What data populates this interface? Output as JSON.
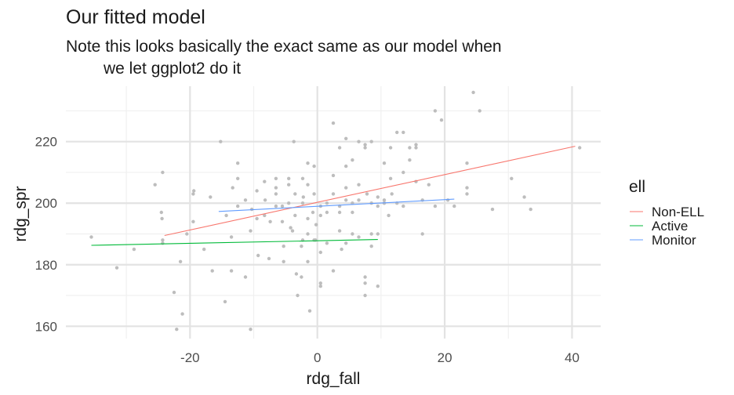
{
  "chart_data": {
    "type": "scatter",
    "title": "Our fitted model",
    "subtitle_lines": [
      "Note this looks basically the exact same as our model when",
      "we let ggplot2 do it"
    ],
    "xlabel": "rdg_fall",
    "ylabel": "rdg_spr",
    "xlim": [
      -39.5,
      44.5
    ],
    "ylim": [
      156,
      238
    ],
    "x_ticks": [
      -20,
      0,
      20,
      40
    ],
    "x_tick_labels": [
      "-20",
      "0",
      "20",
      "40"
    ],
    "y_ticks": [
      160,
      180,
      200,
      220
    ],
    "y_tick_labels": [
      "160",
      "180",
      "200",
      "220"
    ],
    "grid": true,
    "legend": {
      "title": "ell",
      "position": "right",
      "entries": [
        "Non-ELL",
        "Active",
        "Monitor"
      ]
    },
    "series": [
      {
        "name": "Non-ELL",
        "kind": "fitted_line",
        "color": "#F8766D",
        "x": [
          -24,
          40.5
        ],
        "y": [
          189.5,
          218.5
        ]
      },
      {
        "name": "Active",
        "kind": "fitted_line",
        "color": "#00BA38",
        "x": [
          -35.5,
          9.5
        ],
        "y": [
          186.3,
          188.2
        ]
      },
      {
        "name": "Monitor",
        "kind": "fitted_line",
        "color": "#619CFF",
        "x": [
          -15.5,
          21.5
        ],
        "y": [
          197.3,
          201.3
        ]
      }
    ],
    "points_color": "#BDBDBD",
    "points": [
      [
        -35.5,
        189
      ],
      [
        -31.5,
        179
      ],
      [
        -28.8,
        185
      ],
      [
        -25.5,
        206
      ],
      [
        -24.3,
        210
      ],
      [
        -24.5,
        197
      ],
      [
        -24.4,
        195
      ],
      [
        -24.3,
        188
      ],
      [
        -24.3,
        187
      ],
      [
        -22.5,
        171
      ],
      [
        -22.1,
        159
      ],
      [
        -21.5,
        181
      ],
      [
        -21.2,
        164
      ],
      [
        -20.5,
        190
      ],
      [
        -19.5,
        194
      ],
      [
        -19.5,
        203
      ],
      [
        -19.4,
        204
      ],
      [
        -17.8,
        185
      ],
      [
        -16.8,
        202
      ],
      [
        -16.5,
        178
      ],
      [
        -15.2,
        220
      ],
      [
        -14.5,
        168
      ],
      [
        -14.3,
        196
      ],
      [
        -13.5,
        178
      ],
      [
        -13.5,
        189
      ],
      [
        -13.3,
        205
      ],
      [
        -12.5,
        208
      ],
      [
        -12.5,
        213
      ],
      [
        -12.5,
        199
      ],
      [
        -11.3,
        201
      ],
      [
        -11.3,
        176
      ],
      [
        -10.5,
        159
      ],
      [
        -10.5,
        191
      ],
      [
        -10.3,
        198
      ],
      [
        -9.5,
        195
      ],
      [
        -9.5,
        204
      ],
      [
        -9.3,
        183
      ],
      [
        -8.3,
        196
      ],
      [
        -8.3,
        207
      ],
      [
        -8.2,
        201
      ],
      [
        -7.6,
        182
      ],
      [
        -7.4,
        194
      ],
      [
        -6.5,
        199
      ],
      [
        -6.5,
        205
      ],
      [
        -6.5,
        203
      ],
      [
        -6.5,
        208
      ],
      [
        -5.5,
        194
      ],
      [
        -5.5,
        199
      ],
      [
        -5.3,
        186
      ],
      [
        -5.3,
        181
      ],
      [
        -4.5,
        200
      ],
      [
        -4.5,
        206
      ],
      [
        -4.5,
        208
      ],
      [
        -4.2,
        192
      ],
      [
        -3.9,
        191
      ],
      [
        -3.7,
        220
      ],
      [
        -3.5,
        203
      ],
      [
        -3.5,
        196
      ],
      [
        -3.3,
        177
      ],
      [
        -3.1,
        170
      ],
      [
        -2.5,
        176
      ],
      [
        -2.5,
        186
      ],
      [
        -2.3,
        200
      ],
      [
        -2.3,
        188
      ],
      [
        -2.3,
        208
      ],
      [
        -2.2,
        202
      ],
      [
        -1.5,
        195
      ],
      [
        -1.5,
        190
      ],
      [
        -1.5,
        181
      ],
      [
        -1.2,
        165
      ],
      [
        -0.7,
        197
      ],
      [
        -0.5,
        188
      ],
      [
        -0.5,
        203
      ],
      [
        0.5,
        184
      ],
      [
        0.5,
        196
      ],
      [
        -1.5,
        213
      ],
      [
        -1.5,
        206
      ],
      [
        -0.3,
        188
      ],
      [
        -0.2,
        193
      ],
      [
        -0.5,
        212
      ],
      [
        0.5,
        173
      ],
      [
        0.5,
        174
      ],
      [
        0.5,
        199
      ],
      [
        1.5,
        187
      ],
      [
        1.5,
        197
      ],
      [
        1.5,
        200
      ],
      [
        2.5,
        209
      ],
      [
        2.5,
        203
      ],
      [
        2.5,
        178
      ],
      [
        2.5,
        226
      ],
      [
        3.5,
        191
      ],
      [
        3.5,
        197
      ],
      [
        3.5,
        199
      ],
      [
        3.5,
        218
      ],
      [
        3.8,
        185
      ],
      [
        4.5,
        187
      ],
      [
        4.5,
        212
      ],
      [
        4.5,
        221
      ],
      [
        4.5,
        201
      ],
      [
        4.5,
        205
      ],
      [
        5.5,
        190
      ],
      [
        5.5,
        197
      ],
      [
        5.5,
        214
      ],
      [
        5.5,
        200
      ],
      [
        6.5,
        220
      ],
      [
        6.5,
        189
      ],
      [
        6.5,
        201
      ],
      [
        6.5,
        206
      ],
      [
        7.5,
        170
      ],
      [
        7.5,
        174
      ],
      [
        7.5,
        176
      ],
      [
        7.5,
        218
      ],
      [
        7.5,
        219
      ],
      [
        7.8,
        203
      ],
      [
        8.5,
        186
      ],
      [
        8.5,
        190
      ],
      [
        8.5,
        200
      ],
      [
        8.5,
        220
      ],
      [
        9.5,
        173
      ],
      [
        9.5,
        190
      ],
      [
        9.5,
        199
      ],
      [
        9.5,
        202
      ],
      [
        10.5,
        200
      ],
      [
        10.5,
        200
      ],
      [
        10.5,
        201
      ],
      [
        10.5,
        213
      ],
      [
        11.2,
        196
      ],
      [
        11.5,
        218
      ],
      [
        11.5,
        208
      ],
      [
        11.7,
        203
      ],
      [
        12.5,
        200
      ],
      [
        12.5,
        223
      ],
      [
        13.5,
        223
      ],
      [
        13.5,
        199
      ],
      [
        13.5,
        210
      ],
      [
        14.5,
        218
      ],
      [
        14.5,
        214
      ],
      [
        15.5,
        218
      ],
      [
        15.5,
        219
      ],
      [
        15.5,
        207
      ],
      [
        16.5,
        190
      ],
      [
        16.5,
        201
      ],
      [
        17.5,
        206
      ],
      [
        18.5,
        199
      ],
      [
        18.5,
        230
      ],
      [
        19.5,
        227
      ],
      [
        20.5,
        201
      ],
      [
        21.5,
        199
      ],
      [
        23.5,
        205
      ],
      [
        23.5,
        213
      ],
      [
        23.5,
        203
      ],
      [
        24.5,
        236
      ],
      [
        25.5,
        230
      ],
      [
        27.5,
        198
      ],
      [
        30.5,
        208
      ],
      [
        32.5,
        202
      ],
      [
        33.5,
        198
      ],
      [
        41.2,
        218
      ]
    ]
  }
}
